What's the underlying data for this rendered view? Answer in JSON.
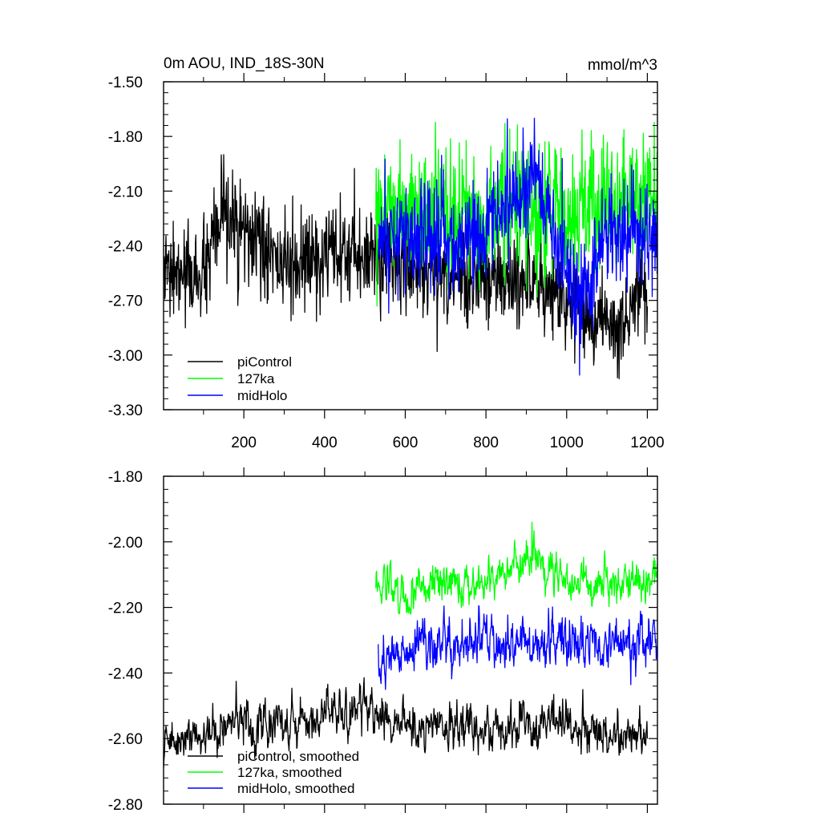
{
  "chart_data": [
    {
      "type": "line",
      "title": "0m AOU, IND_18S-30N",
      "units": "mmol/m^3",
      "xlim": [
        1,
        1225
      ],
      "ylim": [
        -3.3,
        -1.5
      ],
      "xticks": [
        200,
        400,
        600,
        800,
        1000,
        1200
      ],
      "xtick_labels": [
        "200",
        "400",
        "600",
        "800",
        "1000",
        "1200"
      ],
      "yticks": [
        -1.5,
        -1.8,
        -2.1,
        -2.4,
        -2.7,
        -3.0,
        -3.3
      ],
      "ytick_labels": [
        "-1.50",
        "-1.80",
        "-2.10",
        "-2.40",
        "-2.70",
        "-3.00",
        "-3.30"
      ],
      "grid": false,
      "legend_position": "bottom-left",
      "series": [
        {
          "name": "piControl",
          "color": "#000000",
          "x_range": [
            1,
            1200
          ],
          "mean": -2.58,
          "noise": 0.13,
          "min": -3.13,
          "max": -1.9,
          "samples": [
            [
              100,
              -2.55
            ],
            [
              150,
              -1.9
            ],
            [
              300,
              -2.45
            ],
            [
              520,
              -2.3
            ],
            [
              700,
              -2.55
            ],
            [
              900,
              -2.6
            ],
            [
              1130,
              -3.13
            ],
            [
              1200,
              -2.7
            ]
          ]
        },
        {
          "name": "127ka",
          "color": "#00ff00",
          "x_range": [
            527,
            1225
          ],
          "mean": -2.22,
          "noise": 0.17,
          "min": -2.75,
          "max": -1.72,
          "samples": [
            [
              527,
              -2.05
            ],
            [
              600,
              -2.2
            ],
            [
              700,
              -2.25
            ],
            [
              800,
              -2.2
            ],
            [
              900,
              -2.2
            ],
            [
              1000,
              -2.2
            ],
            [
              1100,
              -2.15
            ],
            [
              1225,
              -2.0
            ]
          ]
        },
        {
          "name": "midHolo",
          "color": "#0000ff",
          "x_range": [
            533,
            1225
          ],
          "mean": -2.34,
          "noise": 0.15,
          "min": -3.11,
          "max": -1.7,
          "samples": [
            [
              533,
              -2.4
            ],
            [
              600,
              -2.35
            ],
            [
              700,
              -2.35
            ],
            [
              800,
              -2.3
            ],
            [
              920,
              -1.7
            ],
            [
              1032,
              -3.11
            ],
            [
              1100,
              -2.3
            ],
            [
              1225,
              -2.35
            ]
          ]
        }
      ]
    },
    {
      "type": "line",
      "title": "",
      "xlim": [
        1,
        1225
      ],
      "ylim": [
        -2.8,
        -1.8
      ],
      "xticks": [
        200,
        400,
        600,
        800,
        1000,
        1200
      ],
      "yticks": [
        -1.8,
        -2.0,
        -2.2,
        -2.4,
        -2.6,
        -2.8
      ],
      "ytick_labels": [
        "-1.80",
        "-2.00",
        "-2.20",
        "-2.40",
        "-2.60",
        "-2.80"
      ],
      "grid": false,
      "legend_position": "bottom-left",
      "series": [
        {
          "name": "piControl, smoothed",
          "color": "#000000",
          "x_range": [
            1,
            1200
          ],
          "mean": -2.56,
          "noise": 0.04,
          "min": -2.72,
          "max": -2.4,
          "samples": [
            [
              1,
              -2.68
            ],
            [
              100,
              -2.6
            ],
            [
              200,
              -2.55
            ],
            [
              300,
              -2.57
            ],
            [
              400,
              -2.5
            ],
            [
              520,
              -2.45
            ],
            [
              600,
              -2.57
            ],
            [
              800,
              -2.58
            ],
            [
              1000,
              -2.55
            ],
            [
              1200,
              -2.62
            ]
          ]
        },
        {
          "name": "127ka, smoothed",
          "color": "#00ff00",
          "x_range": [
            527,
            1225
          ],
          "mean": -2.14,
          "noise": 0.035,
          "min": -2.22,
          "max": -1.94,
          "samples": [
            [
              527,
              -2.12
            ],
            [
              600,
              -2.15
            ],
            [
              700,
              -2.1
            ],
            [
              800,
              -2.12
            ],
            [
              914,
              -1.94
            ],
            [
              1000,
              -2.1
            ],
            [
              1100,
              -2.12
            ],
            [
              1225,
              -2.05
            ]
          ]
        },
        {
          "name": "midHolo, smoothed",
          "color": "#0000ff",
          "x_range": [
            533,
            1225
          ],
          "mean": -2.32,
          "noise": 0.045,
          "min": -2.5,
          "max": -2.15,
          "samples": [
            [
              533,
              -2.42
            ],
            [
              600,
              -2.32
            ],
            [
              700,
              -2.3
            ],
            [
              800,
              -2.28
            ],
            [
              900,
              -2.33
            ],
            [
              1000,
              -2.28
            ],
            [
              1100,
              -2.3
            ],
            [
              1225,
              -2.32
            ]
          ]
        }
      ]
    }
  ]
}
